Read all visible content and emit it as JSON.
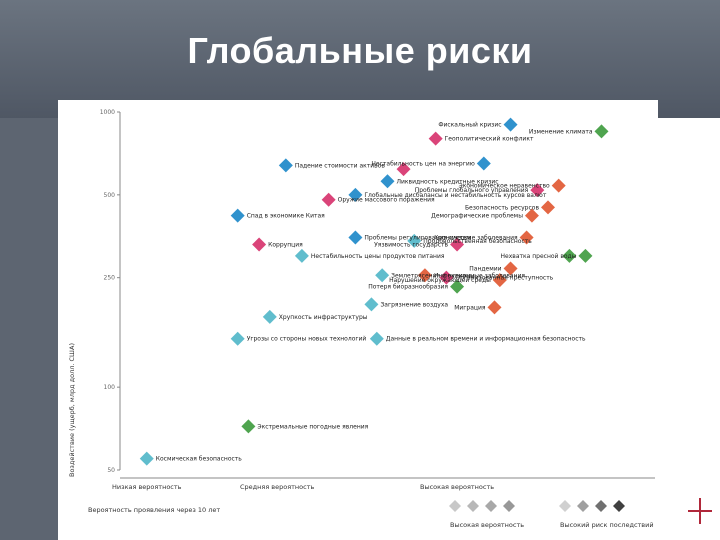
{
  "slide": {
    "title": "Глобальные риски"
  },
  "colors": {
    "economic": "#1a86c8",
    "geopolitical": "#d6306a",
    "environmental": "#3c9a3c",
    "societal": "#e0552f",
    "technological": "#4fb6c8",
    "axis": "#888888",
    "text": "#222222"
  },
  "chart_data": {
    "type": "scatter",
    "title": "",
    "xlabel": "Вероятность проявления через 10 лет",
    "ylabel": "Воздействие (ущерб, млрд долл. США)",
    "y_scale": "log",
    "ylim": [
      50,
      1000
    ],
    "y_ticks": [
      "1000",
      "500",
      "250",
      "100",
      "50"
    ],
    "x_categories": [
      "Низкая вероятность",
      "Средняя вероятность",
      "Высокая вероятность"
    ],
    "legend": {
      "likelihood_label": "Высокая вероятность",
      "severity_label": "Высокий риск последствий"
    },
    "series": [
      {
        "name": "economic",
        "points": [
          {
            "x": 0.73,
            "y": 900,
            "label": "Фискальный кризис"
          },
          {
            "x": 0.68,
            "y": 650,
            "label": "Нестабильность цен на энергию"
          },
          {
            "x": 0.5,
            "y": 560,
            "label": "Ликвидность кредитные кризис"
          },
          {
            "x": 0.44,
            "y": 500,
            "label": "Глобальные дисбалансы и нестабильность курсов валют"
          },
          {
            "x": 0.44,
            "y": 350,
            "label": "Проблемы регулирования систем"
          },
          {
            "x": 0.31,
            "y": 640,
            "label": "Падение стоимости активов"
          },
          {
            "x": 0.22,
            "y": 420,
            "label": "Спад в экономике Китая"
          }
        ]
      },
      {
        "name": "geopolitical",
        "points": [
          {
            "x": 0.59,
            "y": 800,
            "label": "Геополитический конфликт"
          },
          {
            "x": 0.78,
            "y": 520,
            "label": "Проблемы глобального управления"
          },
          {
            "x": 0.53,
            "y": 620,
            "label": ""
          },
          {
            "x": 0.39,
            "y": 480,
            "label": "Оружие массового поражения"
          },
          {
            "x": 0.63,
            "y": 330,
            "label": "Уязвимость государств"
          },
          {
            "x": 0.61,
            "y": 250,
            "label": "Организованная преступность"
          },
          {
            "x": 0.26,
            "y": 330,
            "label": "Коррупция"
          }
        ]
      },
      {
        "name": "environmental",
        "points": [
          {
            "x": 0.9,
            "y": 850,
            "label": "Изменение климата"
          },
          {
            "x": 0.87,
            "y": 300,
            "label": "Нехватка пресной воды"
          },
          {
            "x": 0.84,
            "y": 300,
            "label": ""
          },
          {
            "x": 0.63,
            "y": 232,
            "label": "Потеря биоразнообразия"
          },
          {
            "x": 0.24,
            "y": 72,
            "label": "Экстремальные погодные явления"
          }
        ]
      },
      {
        "name": "societal",
        "points": [
          {
            "x": 0.82,
            "y": 540,
            "label": "Экономическое неравенство"
          },
          {
            "x": 0.8,
            "y": 450,
            "label": "Безопасность ресурсов"
          },
          {
            "x": 0.77,
            "y": 420,
            "label": "Демографические проблемы"
          },
          {
            "x": 0.76,
            "y": 350,
            "label": "Хронические заболевания"
          },
          {
            "x": 0.73,
            "y": 270,
            "label": "Пандемии"
          },
          {
            "x": 0.71,
            "y": 245,
            "label": "Нарушение окружающей среды"
          },
          {
            "x": 0.7,
            "y": 195,
            "label": "Миграция"
          },
          {
            "x": 0.57,
            "y": 255,
            "label": "Инфекционные заболевания"
          }
        ]
      },
      {
        "name": "technological",
        "points": [
          {
            "x": 0.55,
            "y": 340,
            "label": "Продовольственная безопасность"
          },
          {
            "x": 0.28,
            "y": 180,
            "label": "Хрупкость инфраструктуры"
          },
          {
            "x": 0.22,
            "y": 150,
            "label": "Угрозы со стороны новых технологий"
          },
          {
            "x": 0.48,
            "y": 150,
            "label": "Данные в реальном времени и информационная безопасность"
          },
          {
            "x": 0.49,
            "y": 255,
            "label": "Землетрясения и вулканы"
          },
          {
            "x": 0.47,
            "y": 200,
            "label": "Загрязнение воздуха"
          },
          {
            "x": 0.34,
            "y": 300,
            "label": "Нестабильность цены продуктов питания"
          },
          {
            "x": 0.05,
            "y": 55,
            "label": "Космическая безопасность"
          }
        ]
      }
    ]
  }
}
